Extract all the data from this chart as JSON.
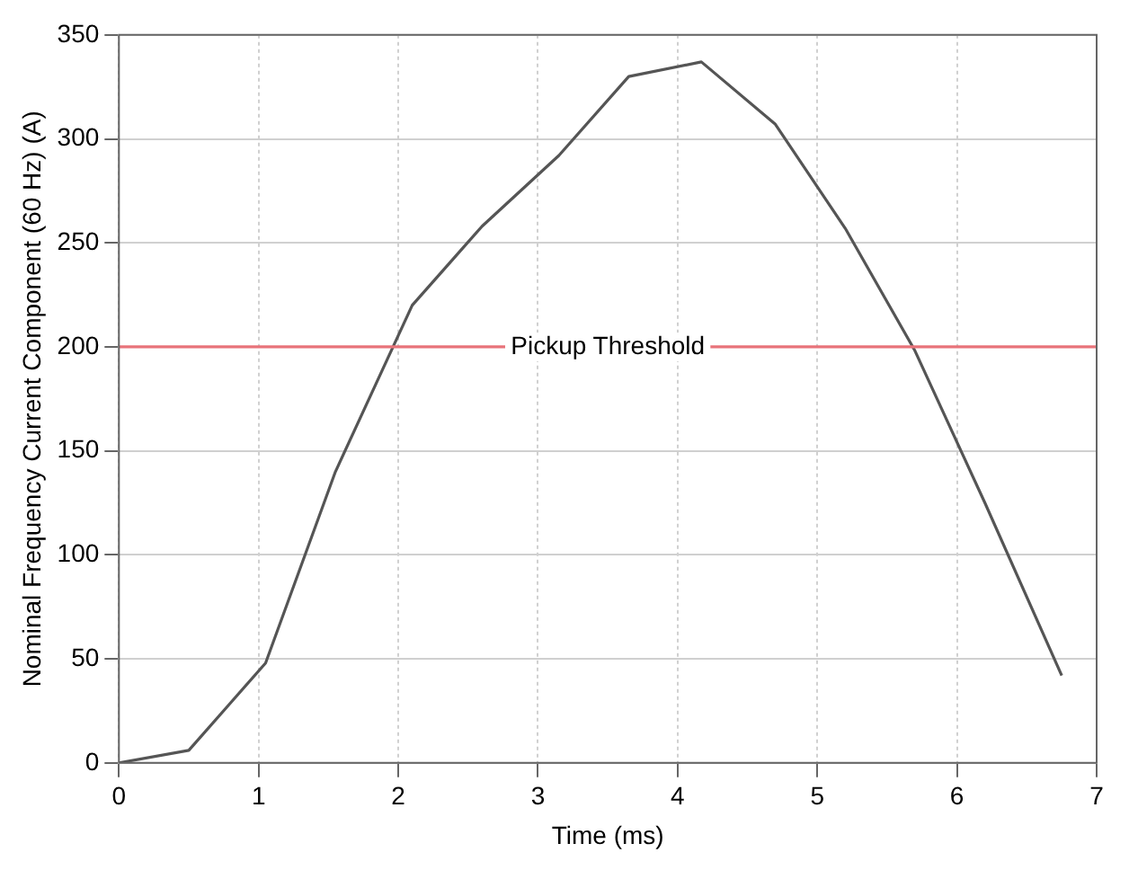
{
  "chart_data": {
    "type": "line",
    "xlabel": "Time (ms)",
    "ylabel": "Nominal Frequency Current Component (60 Hz) (A)",
    "x": [
      0,
      0.5,
      1.05,
      1.55,
      2.1,
      2.6,
      3.15,
      3.65,
      4.17,
      4.7,
      5.2,
      5.7,
      6.2,
      6.75
    ],
    "series": [
      {
        "color": "#555555",
        "values": [
          0,
          6,
          48,
          140,
          220,
          258,
          292,
          330,
          337,
          307,
          257,
          198,
          125,
          42
        ]
      }
    ],
    "xlim": [
      0,
      7
    ],
    "xticks": [
      0,
      1,
      2,
      3,
      4,
      5,
      6,
      7
    ],
    "ylim": [
      0,
      350
    ],
    "yticks": [
      0,
      50,
      100,
      150,
      200,
      250,
      300,
      350
    ],
    "ref_lines": [
      {
        "axis": "y",
        "value": 200,
        "label": "Pickup Threshold",
        "color": "#e8737a"
      }
    ],
    "grid": true,
    "legend": false,
    "marker": "none",
    "line_style": "solid"
  }
}
